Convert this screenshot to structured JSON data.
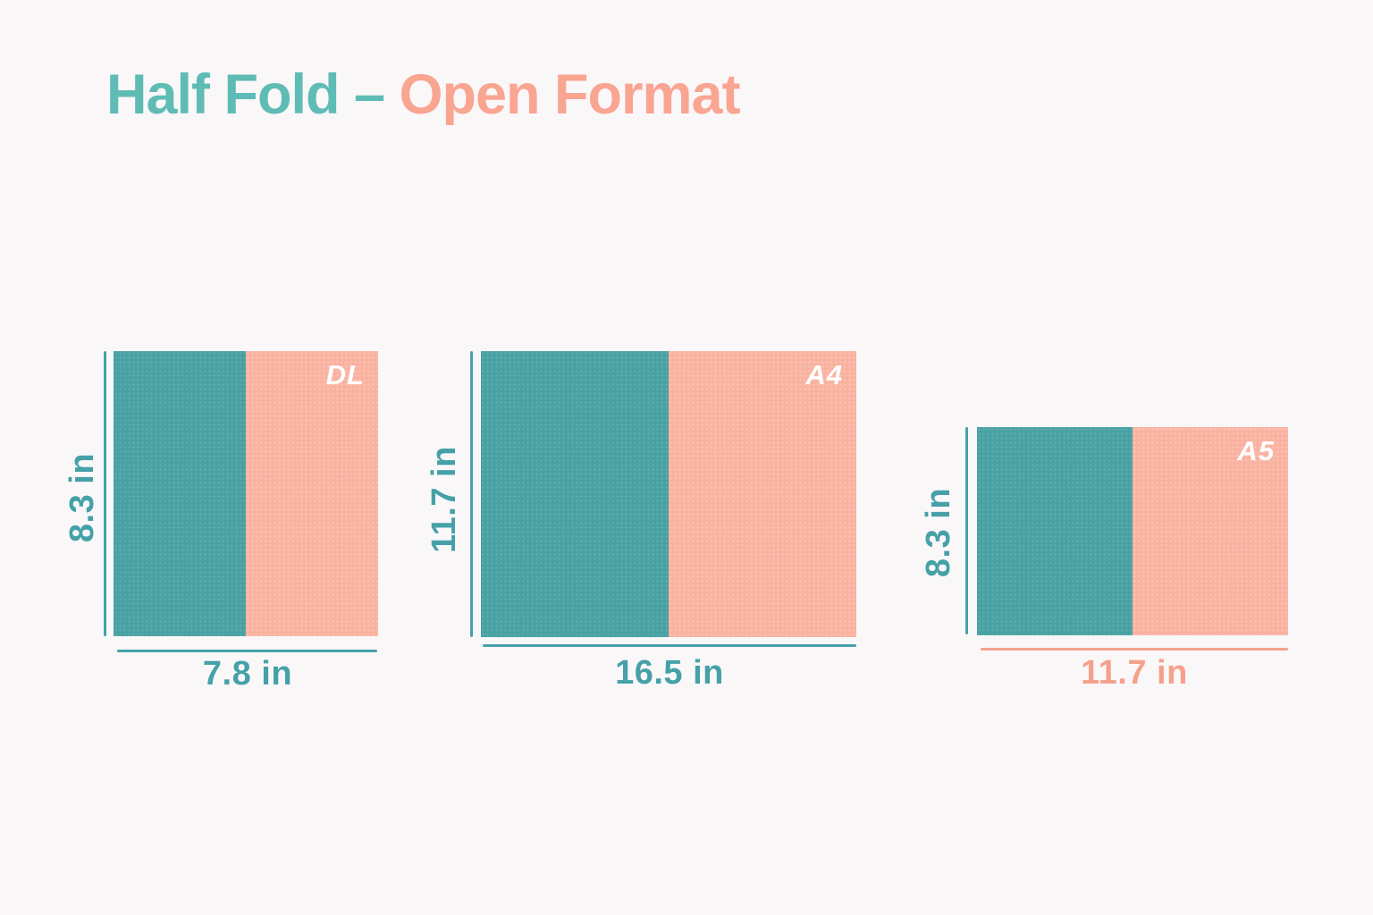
{
  "title": {
    "teal_part": "Half Fold –",
    "pink_part": "Open Format"
  },
  "colors": {
    "background": "#faf7f9",
    "teal_fill": "#48a1a3",
    "pink_fill": "#f9b2a0",
    "teal_accent": "#45a1a7",
    "pink_accent": "#f4a18c",
    "title_teal": "#5fbcb5",
    "title_pink": "#f9a591",
    "format_label_color": "#ffffff"
  },
  "panels": [
    {
      "format": "DL",
      "height_label": "8.3 in",
      "width_label": "7.8 in"
    },
    {
      "format": "A4",
      "height_label": "11.7 in",
      "width_label": "16.5 in"
    },
    {
      "format": "A5",
      "height_label": "8.3 in",
      "width_label": "11.7 in"
    }
  ]
}
